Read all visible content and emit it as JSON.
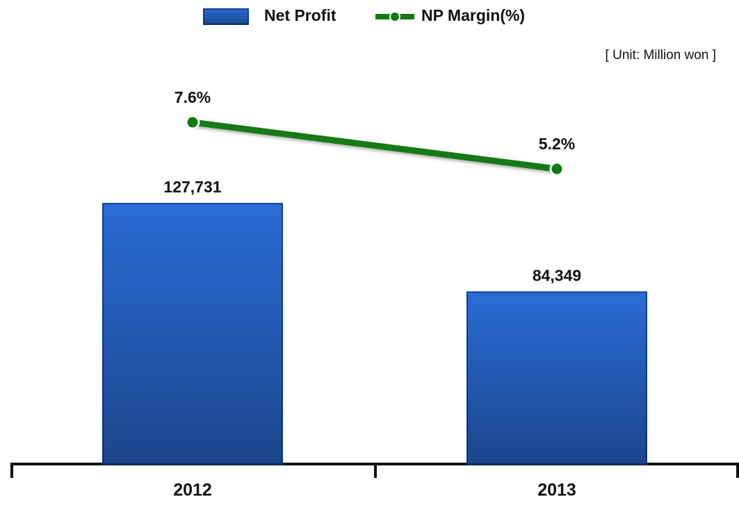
{
  "chart_data": {
    "type": "bar-line",
    "annotation": "[ Unit: Million won ]",
    "categories": [
      "2012",
      "2013"
    ],
    "series": [
      {
        "name": "Net Profit",
        "type": "bar",
        "color": "#2a6bd6",
        "values": [
          127731,
          84349
        ],
        "value_labels": [
          "127,731",
          "84,349"
        ]
      },
      {
        "name": "NP Margin(%)",
        "type": "line",
        "axis": "y2",
        "color": "#127a12",
        "values": [
          7.6,
          5.2
        ],
        "value_labels": [
          "7.6%",
          "5.2%"
        ]
      }
    ],
    "ylim": [
      0,
      200000
    ],
    "y2lim": [
      -10,
      11
    ]
  }
}
